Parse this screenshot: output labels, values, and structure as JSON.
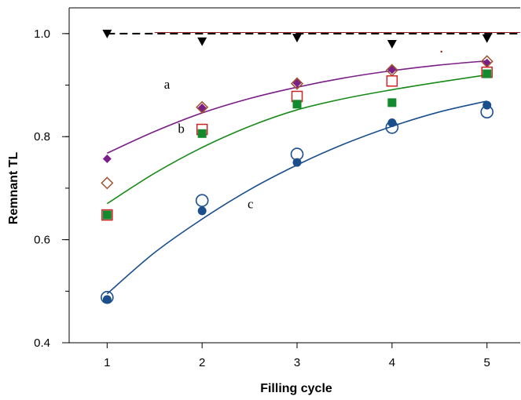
{
  "chart_data": {
    "type": "scatter",
    "title": "",
    "xlabel": "Filling cycle",
    "ylabel": "Remnant TL",
    "xlim": [
      0.6,
      5.35
    ],
    "ylim": [
      0.4,
      1.05
    ],
    "xticks": [
      "1",
      "2",
      "3",
      "4",
      "5"
    ],
    "yticks": [
      "0.4",
      "0.6",
      "0.8",
      "1.0"
    ],
    "grid": false,
    "series": [
      {
        "marker": "filled-triangle-down",
        "color": "#000000",
        "x": [
          1,
          2,
          3,
          4,
          5
        ],
        "y": [
          1.0,
          0.985,
          0.992,
          0.98,
          0.991
        ]
      },
      {
        "marker": "filled-diamond",
        "color": "#7a1f86",
        "x": [
          1,
          2,
          3,
          4,
          5
        ],
        "y": [
          0.757,
          0.856,
          0.904,
          0.93,
          0.943
        ]
      },
      {
        "marker": "open-diamond",
        "color": "#a0522d",
        "x": [
          1,
          2,
          3,
          4,
          5
        ],
        "y": [
          0.71,
          0.857,
          0.903,
          0.929,
          0.946
        ]
      },
      {
        "marker": "open-square",
        "color": "#cc2222",
        "x": [
          1,
          2,
          3,
          4,
          5
        ],
        "y": [
          0.648,
          0.814,
          0.878,
          0.908,
          0.925
        ]
      },
      {
        "marker": "filled-square",
        "color": "#138a2d",
        "x": [
          1,
          2,
          3,
          4,
          5
        ],
        "y": [
          0.648,
          0.806,
          0.863,
          0.866,
          0.922
        ]
      },
      {
        "marker": "open-circle",
        "color": "#1a4f8c",
        "x": [
          1,
          2,
          3,
          4,
          5
        ],
        "y": [
          0.488,
          0.676,
          0.766,
          0.818,
          0.848
        ]
      },
      {
        "marker": "filled-circle",
        "color": "#1a4f8c",
        "x": [
          1,
          2,
          3,
          4,
          5
        ],
        "y": [
          0.484,
          0.656,
          0.75,
          0.827,
          0.861
        ]
      }
    ],
    "reference_lines": [
      {
        "style": "dashed",
        "color": "#000000",
        "x": [
          1,
          5.35
        ],
        "y": [
          1.0,
          1.0
        ]
      },
      {
        "style": "solid",
        "color": "#8b1a1a",
        "x": [
          1.5,
          5.35
        ],
        "y": [
          1.002,
          1.002
        ]
      }
    ],
    "curves": [
      {
        "label": "a",
        "color": "#7a1f86",
        "x": [
          1,
          1.5,
          2,
          2.5,
          3,
          3.5,
          4,
          4.5,
          5
        ],
        "y": [
          0.768,
          0.81,
          0.846,
          0.874,
          0.896,
          0.914,
          0.928,
          0.939,
          0.947
        ]
      },
      {
        "label": "b",
        "color": "#1a8a1a",
        "x": [
          1,
          1.5,
          2,
          2.5,
          3,
          3.5,
          4,
          4.5,
          5
        ],
        "y": [
          0.67,
          0.729,
          0.779,
          0.82,
          0.852,
          0.874,
          0.891,
          0.906,
          0.92
        ]
      },
      {
        "label": "c",
        "color": "#1a4f8c",
        "x": [
          1,
          1.5,
          2,
          2.5,
          3,
          3.5,
          4,
          4.5,
          5
        ],
        "y": [
          0.495,
          0.575,
          0.64,
          0.697,
          0.745,
          0.786,
          0.82,
          0.848,
          0.869
        ]
      }
    ],
    "annotations": [
      {
        "text": "a",
        "x": 1.63,
        "y": 0.893
      },
      {
        "text": "b",
        "x": 1.78,
        "y": 0.807
      },
      {
        "text": "c",
        "x": 2.51,
        "y": 0.661
      }
    ],
    "stray_mark": {
      "x": 4.52,
      "y": 0.965,
      "color": "#8b1a1a"
    }
  }
}
